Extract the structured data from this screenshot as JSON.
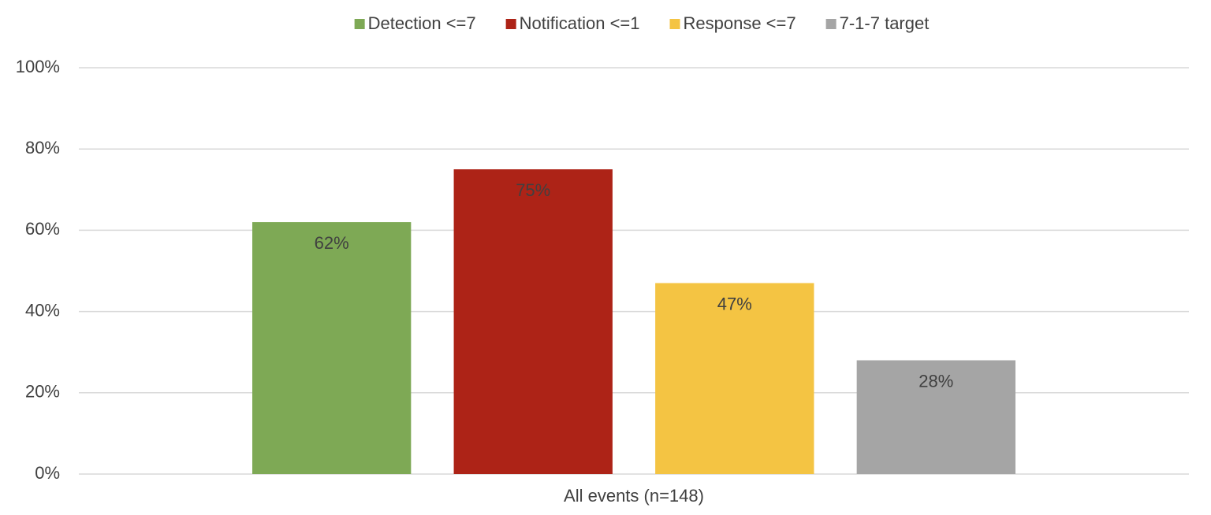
{
  "chart_data": {
    "type": "bar",
    "categories": [
      "All events (n=148)"
    ],
    "series": [
      {
        "name": "Detection <=7",
        "color": "#7ea955",
        "values": [
          62
        ],
        "value_labels": [
          "62%"
        ]
      },
      {
        "name": "Notification <=1",
        "color": "#ad2317",
        "values": [
          75
        ],
        "value_labels": [
          "75%"
        ]
      },
      {
        "name": "Response <=7",
        "color": "#f4c443",
        "values": [
          47
        ],
        "value_labels": [
          "47%"
        ]
      },
      {
        "name": "7-1-7 target",
        "color": "#a5a5a5",
        "values": [
          28
        ],
        "value_labels": [
          "28%"
        ]
      }
    ],
    "ylim": [
      0,
      100
    ],
    "yticks": [
      {
        "value": 0,
        "label": "0%"
      },
      {
        "value": 20,
        "label": "20%"
      },
      {
        "value": 40,
        "label": "40%"
      },
      {
        "value": 60,
        "label": "60%"
      },
      {
        "value": 80,
        "label": "80%"
      },
      {
        "value": 100,
        "label": "100%"
      }
    ],
    "grid": true,
    "legend": "top"
  }
}
